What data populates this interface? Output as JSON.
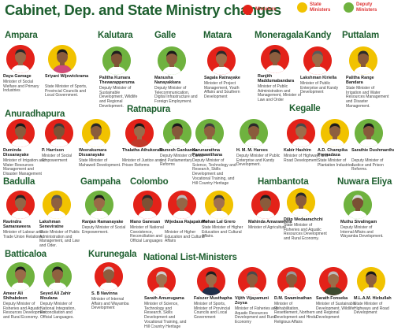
{
  "title": "Cabinet, Dep. and  State Ministry changes",
  "legend": {
    "ministers": {
      "label": "Ministers",
      "color": "#e32219"
    },
    "state": {
      "label": "State\nMinisters",
      "color": "#f1c200"
    },
    "deputy": {
      "label": "Deputy\nMinisters",
      "color": "#6fb23f"
    }
  },
  "districts": {
    "ampara": "Ampara",
    "kalutara": "Kalutara",
    "galle": "Galle",
    "matara": "Matara",
    "moneragala": "Moneragala",
    "kandy": "Kandy",
    "puttalam": "Puttalam",
    "anuradhapura": "Anuradhapura",
    "ratnapura": "Ratnapura",
    "kegalle": "Kegalle",
    "badulla": "Badulla",
    "gampaha": "Gampaha",
    "colombo": "Colombo",
    "hambantota": "Hambantota",
    "nuwara_eliya": "Nuwara Eliya",
    "batticaloa": "Batticaloa",
    "kurunegala": "Kurunegala",
    "national_list": "National List-Ministers"
  },
  "people": [
    {
      "key": "daya",
      "name": "Daya Gamage",
      "role": "Minister of Social Welfare and Primary Industries",
      "type": "ministers",
      "skin": "#9a6a4a",
      "hair": "#2a2a2a",
      "shirt": "#ffffff"
    },
    {
      "key": "sriyani",
      "name": "Sriyani Wijewickrama",
      "role": "State Minister of Sports, Provincial Councils and Local Government.",
      "type": "state",
      "skin": "#8a5b3c",
      "hair": "#1a1a1a",
      "shirt": "#d04a7a"
    },
    {
      "key": "palitha_k",
      "name": "Palitha Kumara Thewarapperuma",
      "role": "Deputy Minister of Sustainable Development, Wildlife and Regional Development.",
      "type": "deputy",
      "skin": "#7f5436",
      "hair": "#1e1e1e",
      "shirt": "#ffffff"
    },
    {
      "key": "manusha",
      "name": "Manusha Nanayakkara",
      "role": "Deputy Minister of Telecommunication, Digital Infrastructure and Foreign Employment.",
      "type": "deputy",
      "skin": "#8d5e3e",
      "hair": "#1a1a1a",
      "shirt": "#ffffff"
    },
    {
      "key": "sagala",
      "name": "Sagala Ratnayake",
      "role": "Minister of Project Management, Youth Affairs and Southern Development",
      "type": "ministers",
      "skin": "#a0704c",
      "hair": "#2a2a2a",
      "shirt": "#ffffff"
    },
    {
      "key": "ranjith",
      "name": "Ranjith Maddumabandara",
      "role": "Minister of Public Administration and Management, Minister of Law and Order",
      "type": "ministers",
      "skin": "#8c5e3f",
      "hair": "#1f1f1f",
      "shirt": "#ffffff"
    },
    {
      "key": "lakshman_k",
      "name": "Lakshman Kiriella",
      "role": "Minister of Public Enterprise and Kandy Development",
      "type": "ministers",
      "skin": "#9b6b48",
      "hair": "#5a5a5a",
      "shirt": "#ffffff"
    },
    {
      "key": "palitha_r",
      "name": "Palitha Range Bandara",
      "role": "State Minister of Irrigation and Water Resources Management and Disaster Management.",
      "type": "state",
      "skin": "#8a5a3a",
      "hair": "#2b2b2b",
      "shirt": "#ffffff"
    },
    {
      "key": "duminda",
      "name": "Duminda Dissanayake",
      "role": "Minister of Irrigation and Water Resources Management and Disaster Management",
      "type": "ministers",
      "skin": "#8a5c3d",
      "hair": "#1c1c1c",
      "shirt": "#ffffff"
    },
    {
      "key": "harrison",
      "name": "P. Harrison",
      "role": "Minister of Social Empowerment",
      "type": "ministers",
      "skin": "#7d5235",
      "hair": "#3a3a3a",
      "shirt": "#ffffff"
    },
    {
      "key": "weerakumara",
      "name": "Weerakumara Dissanayake",
      "role": "State Minister of Mahaweli Development.",
      "type": "state",
      "skin": "#8b5d3c",
      "hair": "#2a2a2a",
      "shirt": "#ffffff"
    },
    {
      "key": "thalatha",
      "name": "Thalatha Athukorala",
      "role": "Minister of Justice and Prison Reforms",
      "type": "ministers",
      "skin": "#9a6b4b",
      "hair": "#1a1a1a",
      "shirt": "#c0392b"
    },
    {
      "key": "dunesh",
      "name": "Dunesh Gankanda",
      "role": "Deputy Minister of Lands and Parliamentary Reforms",
      "type": "deputy",
      "skin": "#85583a",
      "hair": "#1b1b1b",
      "shirt": "#ffffff"
    },
    {
      "key": "karunarathna",
      "name": "Karunarathna Paranawithana",
      "role": "Deputy Minister of Science, Technology and Research, Skills Development and Vocational Training, and Hill Country Heritage",
      "type": "deputy",
      "skin": "#8f603f",
      "hair": "#3d3d3d",
      "shirt": "#ffffff"
    },
    {
      "key": "hareez",
      "name": "H. M. M. Harees",
      "role": "Deputy Minister of Public Enterprise and Kandy Development.",
      "type": "deputy",
      "skin": "#8a5c3c",
      "hair": "#2a2a2a",
      "shirt": "#ffffff"
    },
    {
      "key": "kabir",
      "name": "Kabir Hashim",
      "role": "Minister of Highways and Road Development",
      "type": "ministers",
      "skin": "#9c6d4b",
      "hair": "#4a4a4a",
      "shirt": "#ffffff"
    },
    {
      "key": "champika",
      "name": "A.D. Champika Premadasa",
      "role": "State Minister of Plantation Industries.",
      "type": "state",
      "skin": "#8d5f3f",
      "hair": "#1e1e1e",
      "shirt": "#ffffff"
    },
    {
      "key": "sarathie",
      "name": "Sarathie Dushmantha",
      "role": "Deputy Minister of Justice and Prison Reforms.",
      "type": "deputy",
      "skin": "#875a3b",
      "hair": "#1a1a1a",
      "shirt": "#ffffff"
    },
    {
      "key": "ravindra",
      "name": "Ravindra Samaraweera",
      "role": "Minister of Labour and Trade Union Relations",
      "type": "ministers",
      "skin": "#946546",
      "hair": "#222222",
      "shirt": "#ffffff"
    },
    {
      "key": "lakshman_s",
      "name": "Lakshman Seneviratne",
      "role": "State Minister of Public Administration and Management, and Law and Oder.",
      "type": "state",
      "skin": "#8f6040",
      "hair": "#555555",
      "shirt": "#ffffff"
    },
    {
      "key": "ranjan",
      "name": "Ranjan Ramanayake",
      "role": "Deputy Minister of Social Empowerment.",
      "type": "deputy",
      "skin": "#9a6a47",
      "hair": "#1a1a1a",
      "shirt": "#ffffff"
    },
    {
      "key": "mano",
      "name": "Mano Ganesan",
      "role": "Minister of National Coexistence, Reconciliation and Official Languages",
      "type": "ministers",
      "skin": "#7c5134",
      "hair": "#2a2a2a",
      "shirt": "#ffffff"
    },
    {
      "key": "wijedasa",
      "name": "Wijedasa Rajapakshe",
      "role": "Minister of Higher Education and Cultural Affairs",
      "type": "ministers",
      "skin": "#946647",
      "hair": "#bdbdbd",
      "shirt": "#ffffff"
    },
    {
      "key": "mohan",
      "name": "Mohan Lal Grero",
      "role": "State Minister of Higher Education and Cultural Affairs.",
      "type": "state",
      "skin": "#a17150",
      "hair": "#3a3a3a",
      "shirt": "#ffffff"
    },
    {
      "key": "mahinda",
      "name": "Mahinda Amaraweera",
      "role": "Minister of Agriculture",
      "type": "ministers",
      "skin": "#8a5b3b",
      "hair": "#1c1c1c",
      "shirt": "#ffffff"
    },
    {
      "key": "dilip",
      "name": "Dilip Wedaarachchi",
      "role": "State Minister of Fisheries and Aquatic Resources Development and Rural Economy.",
      "type": "state",
      "skin": "#8b5c3d",
      "hair": "#2a2a2a",
      "shirt": "#ffffff"
    },
    {
      "key": "muthu",
      "name": "Muthu Sivalingam",
      "role": "Deputy Minister of Internal Affairs and Wayamba Development.",
      "type": "deputy",
      "skin": "#7a5034",
      "hair": "#dadada",
      "shirt": "#ffffff"
    },
    {
      "key": "ameer",
      "name": "Ameer Ali Shihabdeen",
      "role": "Deputy Minister of Fisheries and Aquatic Resources Development and Rural Economy.",
      "type": "deputy",
      "skin": "#9a6b48",
      "hair": "#1c1c1c",
      "shirt": "#ffffff"
    },
    {
      "key": "seyed",
      "name": "Seyed Ali Zahir Moulana",
      "role": "Deputy Minister of National Integration, Reconciliation and Official Languages.",
      "type": "deputy",
      "skin": "#8f613f",
      "hair": "#1a1a1a",
      "shirt": "#ffffff"
    },
    {
      "key": "navinna",
      "name": "S. B Navinna",
      "role": "Minister of Internal Affairs and Wayamba Development",
      "type": "ministers",
      "skin": "#8c5d3e",
      "hair": "#c8c8c8",
      "shirt": "#ffffff"
    },
    {
      "key": "sarath_a",
      "name": "Sarath Amunugama",
      "role": "Minister of Science, Technology and Research, Skills Development and Vocational Training, and Hill Country Heritage",
      "type": "ministers",
      "skin": "#a07250",
      "hair": "#d0d0d0",
      "shirt": "#ffffff"
    },
    {
      "key": "faiszer",
      "name": "Faiszer Musthapha",
      "role": "Minister of Sports, Minister of Provincial Councils and Local Government",
      "type": "ministers",
      "skin": "#9a6c4a",
      "hair": "#1f1f1f",
      "shirt": "#1f2f4a"
    },
    {
      "key": "vijith",
      "name": "Vijith Vijayamuni Zoysa",
      "role": "Minister of Fisheries and Aquatic Resources Development and Rural Economy",
      "type": "ministers",
      "skin": "#8d5e3e",
      "hair": "#4a4a4a",
      "shirt": "#ffffff"
    },
    {
      "key": "swaminathan",
      "name": "D.M. Swaminathan",
      "role": "Minister of Rehabilitation, Resettlement, Northern Development and Hindu Religious Affairs",
      "type": "ministers",
      "skin": "#8a5c3b",
      "hair": "#9a9a9a",
      "shirt": "#ffffff"
    },
    {
      "key": "fonseka",
      "name": "Sarath Fonseka",
      "role": "Minister of Sustainable Development, Wildlife and Regional Development",
      "type": "ministers",
      "skin": "#9b6c49",
      "hair": "#bdbdbd",
      "shirt": "#3c4a2f"
    },
    {
      "key": "hizbullah",
      "name": "M.L.A.M. Hizbullah",
      "role": "State Minister of Highways and Road Development",
      "type": "state",
      "skin": "#8f603f",
      "hair": "#1a1a1a",
      "shirt": "#ffffff"
    }
  ]
}
